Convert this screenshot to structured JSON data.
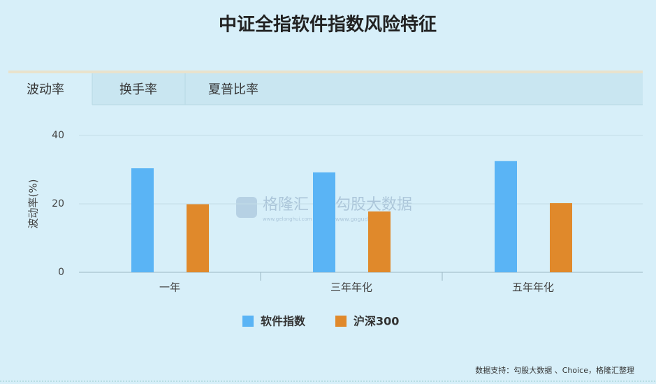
{
  "tabs": [
    "波动率",
    "换手率",
    "夏普比率"
  ],
  "chart_data": {
    "type": "bar",
    "title": "中证全指软件指数风险特征",
    "ylabel": "波动率(%)",
    "categories": [
      "一年",
      "三年年化",
      "五年年化"
    ],
    "series": [
      {
        "name": "软件指数",
        "color": "#5ab4f5",
        "values": [
          30.4,
          29.2,
          32.5
        ]
      },
      {
        "name": "沪深300",
        "color": "#e0892b",
        "values": [
          19.9,
          17.8,
          20.2
        ]
      }
    ],
    "ylim": [
      0,
      40
    ],
    "yticks": [
      0,
      20,
      40
    ],
    "grid": true
  },
  "watermark": {
    "left": "格隆汇",
    "left_url": "www.gelonghui.com",
    "right": "勾股大数据",
    "right_url": "www.gogudata.com"
  },
  "footer": "数据支持：勾股大数据 、Choice，格隆汇整理"
}
